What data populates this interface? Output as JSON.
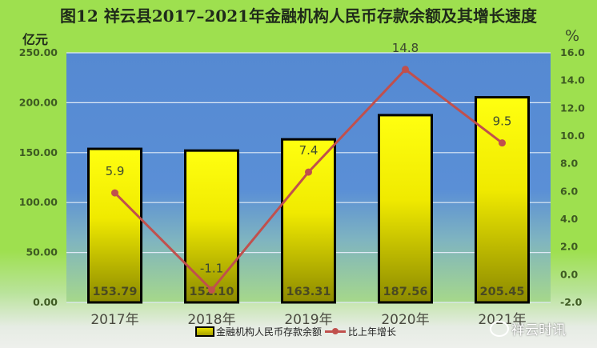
{
  "title": "图12  祥云县2017–2021年金融机构人民币存款余额及其增长速度",
  "axes": {
    "left_unit": "亿元",
    "right_unit": "%",
    "left_ticks": [
      "250.00",
      "200.00",
      "150.00",
      "100.00",
      "50.00",
      "0.00"
    ],
    "right_ticks": [
      "16.0",
      "14.0",
      "12.0",
      "10.0",
      "8.0",
      "6.0",
      "4.0",
      "2.0",
      "0.0",
      "-2.0"
    ]
  },
  "legend": {
    "bar_label": "金融机构人民币存款余额",
    "line_label": "比上年增长"
  },
  "watermark": "祥云时讯",
  "labels": {
    "x": [
      "2017年",
      "2018年",
      "2019年",
      "2020年",
      "2021年"
    ],
    "bars": [
      "153.79",
      "152.10",
      "163.31",
      "187.56",
      "205.45"
    ],
    "line": [
      "5.9",
      "-1.1",
      "7.4",
      "14.8",
      "9.5"
    ]
  },
  "colors": {
    "plot_bg_top": "#5589d2",
    "bar_top": "#ffff00",
    "bar_bottom": "#8c8a00",
    "line": "#c0504d",
    "bg_green": "#9ee04f"
  },
  "chart_data": {
    "type": "bar",
    "title": "图12  祥云县2017–2021年金融机构人民币存款余额及其增长速度",
    "categories": [
      "2017年",
      "2018年",
      "2019年",
      "2020年",
      "2021年"
    ],
    "series": [
      {
        "name": "金融机构人民币存款余额",
        "type": "bar",
        "axis": "left",
        "unit": "亿元",
        "values": [
          153.79,
          152.1,
          163.31,
          187.56,
          205.45
        ]
      },
      {
        "name": "比上年增长",
        "type": "line",
        "axis": "right",
        "unit": "%",
        "values": [
          5.9,
          -1.1,
          7.4,
          14.8,
          9.5
        ]
      }
    ],
    "ylabel": "亿元",
    "y2label": "%",
    "ylim": [
      0,
      250
    ],
    "y2lim": [
      -2.0,
      16.0
    ],
    "yticks": [
      0,
      50,
      100,
      150,
      200,
      250
    ],
    "y2ticks": [
      -2,
      0,
      2,
      4,
      6,
      8,
      10,
      12,
      14,
      16
    ],
    "grid": true,
    "legend_position": "bottom"
  }
}
